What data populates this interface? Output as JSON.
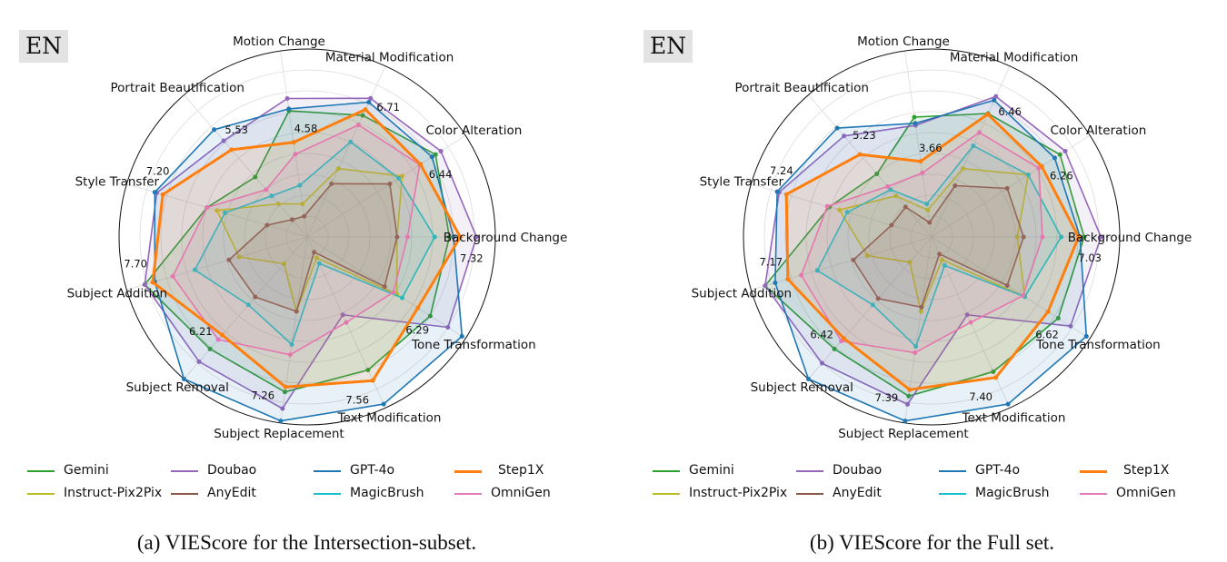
{
  "chart_data": [
    {
      "type": "radar",
      "badge": "EN",
      "caption": "(a) VIEScore for the Intersection-subset.",
      "rlim": [
        0,
        9
      ],
      "grid": true,
      "legend_placement": "bottom",
      "categories": [
        "Background Change",
        "Color Alteration",
        "Material Modification",
        "Motion Change",
        "Portrait Beautification",
        "Style Transfer",
        "Subject Addition",
        "Subject Removal",
        "Subject Replacement",
        "Text Modification",
        "Tone Transformation"
      ],
      "annotated_series": "Step1X",
      "series": [
        {
          "name": "Gemini",
          "color": "#2ca02c",
          "values": [
            6.8,
            7.3,
            6.4,
            6.1,
            3.8,
            5.0,
            8.1,
            7.1,
            7.5,
            7.0,
            7.0
          ]
        },
        {
          "name": "Doubao",
          "color": "#9467bd",
          "values": [
            8.1,
            7.6,
            7.3,
            6.7,
            6.1,
            7.5,
            8.1,
            7.9,
            8.3,
            4.1,
            8.0
          ]
        },
        {
          "name": "GPT-4o",
          "color": "#1f77b4",
          "values": [
            7.0,
            7.1,
            7.1,
            6.2,
            6.8,
            7.6,
            7.6,
            9.0,
            8.9,
            8.8,
            8.8
          ]
        },
        {
          "name": "Step1X",
          "color": "#ff7f0e",
          "values": [
            7.32,
            6.44,
            6.71,
            4.58,
            5.53,
            7.2,
            7.7,
            6.21,
            7.26,
            7.56,
            6.29
          ]
        },
        {
          "name": "Instruct-Pix2Pix",
          "color": "#bcbd22",
          "values": [
            4.3,
            5.4,
            3.6,
            1.6,
            2.1,
            4.5,
            3.4,
            1.7,
            3.6,
            1.1,
            5.1
          ]
        },
        {
          "name": "AnyEdit",
          "color": "#8c564b",
          "values": [
            4.3,
            4.7,
            2.8,
            1.0,
            1.1,
            2.0,
            3.9,
            3.8,
            3.6,
            0.8,
            4.4
          ]
        },
        {
          "name": "MagicBrush",
          "color": "#17becf",
          "values": [
            6.1,
            5.2,
            5.0,
            2.5,
            2.6,
            4.1,
            5.6,
            4.3,
            5.2,
            1.4,
            5.4
          ]
        },
        {
          "name": "OmniGen",
          "color": "#e377c2",
          "values": [
            4.8,
            6.4,
            5.9,
            4.0,
            3.0,
            5.0,
            6.7,
            6.5,
            5.7,
            4.5,
            4.9
          ]
        }
      ]
    },
    {
      "type": "radar",
      "badge": "EN",
      "caption": "(b) VIEScore for the Full set.",
      "rlim": [
        0,
        9
      ],
      "grid": true,
      "legend_placement": "bottom",
      "categories": [
        "Background Change",
        "Color Alteration",
        "Material Modification",
        "Motion Change",
        "Portrait Beautification",
        "Style Transfer",
        "Subject Addition",
        "Subject Removal",
        "Subject Replacement",
        "Text Modification",
        "Tone Transformation"
      ],
      "annotated_series": "Step1X",
      "series": [
        {
          "name": "Gemini",
          "color": "#2ca02c",
          "values": [
            7.3,
            7.3,
            6.5,
            5.8,
            4.0,
            5.1,
            8.3,
            7.1,
            7.7,
            7.1,
            7.2
          ]
        },
        {
          "name": "Doubao",
          "color": "#9467bd",
          "values": [
            8.1,
            7.6,
            7.4,
            5.4,
            6.4,
            7.6,
            8.3,
            8.0,
            8.1,
            4.1,
            7.9
          ]
        },
        {
          "name": "GPT-4o",
          "color": "#1f77b4",
          "values": [
            7.1,
            7.0,
            7.2,
            5.5,
            6.9,
            7.7,
            7.8,
            9.0,
            8.9,
            8.8,
            8.8
          ]
        },
        {
          "name": "Step1X",
          "color": "#ff7f0e",
          "values": [
            7.03,
            6.26,
            6.46,
            3.66,
            5.23,
            7.24,
            7.17,
            6.42,
            7.39,
            7.4,
            6.62
          ]
        },
        {
          "name": "Instruct-Pix2Pix",
          "color": "#bcbd22",
          "values": [
            4.1,
            5.5,
            3.6,
            1.3,
            2.6,
            4.6,
            3.2,
            1.6,
            3.6,
            1.2,
            5.3
          ]
        },
        {
          "name": "AnyEdit",
          "color": "#8c564b",
          "values": [
            4.4,
            4.3,
            2.7,
            0.7,
            1.9,
            2.0,
            3.9,
            3.9,
            3.4,
            0.9,
            4.3
          ]
        },
        {
          "name": "MagicBrush",
          "color": "#17becf",
          "values": [
            6.2,
            5.5,
            4.8,
            1.6,
            3.0,
            4.2,
            5.7,
            4.3,
            5.3,
            1.5,
            5.3
          ]
        },
        {
          "name": "OmniGen",
          "color": "#e377c2",
          "values": [
            5.3,
            6.1,
            5.5,
            3.1,
            3.2,
            5.2,
            6.5,
            6.6,
            5.6,
            4.5,
            5.2
          ]
        }
      ]
    }
  ]
}
